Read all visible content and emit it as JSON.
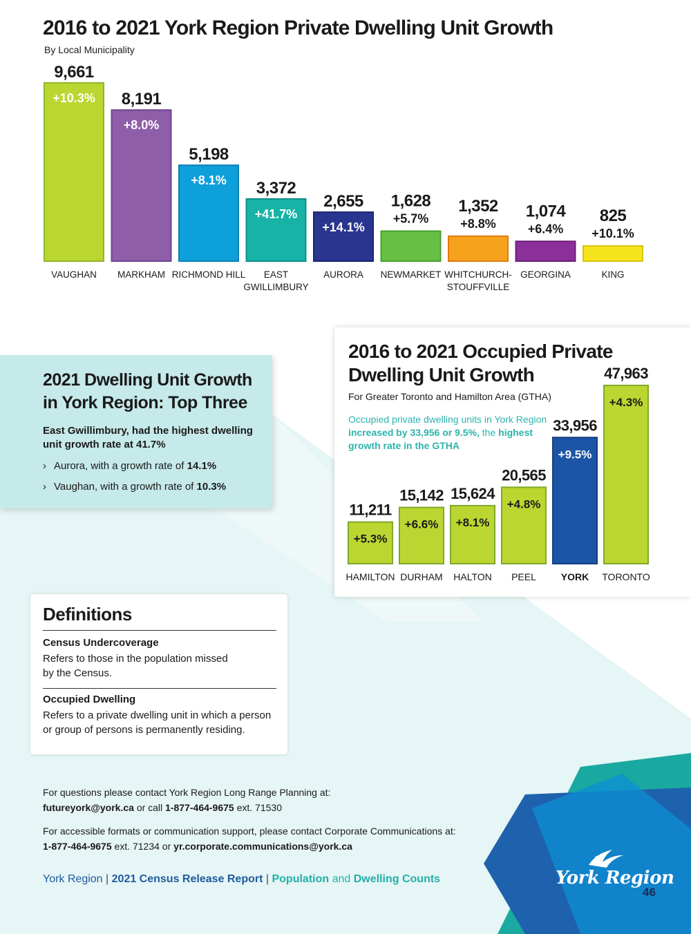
{
  "chart_data": [
    {
      "type": "bar",
      "title": "2016 to 2021 York Region Private Dwelling Unit Growth",
      "subtitle": "By Local Municipality",
      "categories": [
        "VAUGHAN",
        "MARKHAM",
        "RICHMOND HILL",
        "EAST GWILLIMBURY",
        "AURORA",
        "NEWMARKET",
        "WHITCHURCH-STOUFFVILLE",
        "GEORGINA",
        "KING"
      ],
      "category_lines": [
        [
          "VAUGHAN"
        ],
        [
          "MARKHAM"
        ],
        [
          "RICHMOND HILL"
        ],
        [
          "EAST",
          "GWILLIMBURY"
        ],
        [
          "AURORA"
        ],
        [
          "NEWMARKET"
        ],
        [
          "WHITCHURCH-",
          "STOUFFVILLE"
        ],
        [
          "GEORGINA"
        ],
        [
          "KING"
        ]
      ],
      "values": [
        9661,
        8191,
        5198,
        3372,
        2655,
        1628,
        1352,
        1074,
        825
      ],
      "value_labels": [
        "9,661",
        "8,191",
        "5,198",
        "3,372",
        "2,655",
        "1,628",
        "1,352",
        "1,074",
        "825"
      ],
      "growth_labels": [
        "+10.3%",
        "+8.0%",
        "+8.1%",
        "+41.7%",
        "+14.1%",
        "+5.7%",
        "+8.8%",
        "+6.4%",
        "+10.1%"
      ],
      "colors": [
        "#bcd631",
        "#8e5ea8",
        "#0ea0db",
        "#17b3a6",
        "#2a3590",
        "#67bf45",
        "#f7a21c",
        "#8b2f9a",
        "#f6e51d"
      ],
      "borders": [
        "#8fb52c",
        "#6e4590",
        "#0b80b5",
        "#10908a",
        "#1a2470",
        "#44a02e",
        "#e07b10",
        "#6e1f7d",
        "#d7c30c"
      ],
      "ylim": [
        0,
        10000
      ],
      "grid": false
    },
    {
      "type": "bar",
      "title": "2016 to 2021 Occupied Private Dwelling Unit Growth",
      "subtitle": "For Greater Toronto and Hamilton Area (GTHA)",
      "categories": [
        "HAMILTON",
        "DURHAM",
        "HALTON",
        "PEEL",
        "YORK",
        "TORONTO"
      ],
      "values": [
        11211,
        15142,
        15624,
        20565,
        33956,
        47963
      ],
      "value_labels": [
        "11,211",
        "15,142",
        "15,624",
        "20,565",
        "33,956",
        "47,963"
      ],
      "growth_labels": [
        "+5.3%",
        "+6.6%",
        "+8.1%",
        "+4.8%",
        "+9.5%",
        "+4.3%"
      ],
      "colors": [
        "#bcd631",
        "#bcd631",
        "#bcd631",
        "#bcd631",
        "#1c55a6",
        "#bcd631"
      ],
      "borders": [
        "#7fa82a",
        "#7fa82a",
        "#7fa82a",
        "#7fa82a",
        "#143f80",
        "#7fa82a"
      ],
      "highlight": "YORK",
      "ylim": [
        0,
        50000
      ],
      "grid": false
    }
  ],
  "gtha": {
    "title_line1": "2016 to 2021 Occupied Private",
    "title_line2": "Dwelling Unit Growth",
    "subtitle": "For Greater Toronto and Hamilton Area (GTHA)",
    "note_part1": "Occupied private dwelling units in York Region",
    "note_part2": "increased by 33,956 or 9.5%,",
    "note_part3": "the",
    "note_part4": "highest growth rate in the GTHA"
  },
  "top3": {
    "title_line1": "2021 Dwelling Unit Growth",
    "title_line2": "in York Region: Top Three",
    "lead": "East Gwillimbury, had the highest dwelling unit growth rate at 41.7%",
    "bullets": [
      {
        "text": "Aurora, with a growth rate of",
        "value": "14.1%"
      },
      {
        "text": "Vaughan, with a growth rate of",
        "value": "10.3%"
      }
    ],
    "chevron": "›"
  },
  "definitions": {
    "title": "Definitions",
    "items": [
      {
        "term": "Census Undercoverage",
        "text": "Refers to those in the population missed by the Census."
      },
      {
        "term": "Occupied Dwelling",
        "text": "Refers to a private dwelling unit in which a person or group of persons is permanently residing."
      }
    ]
  },
  "contact": {
    "line1": "For questions please contact York Region Long Range Planning at:",
    "email1": "futureyork@york.ca",
    "call": "or call",
    "phone1": "1-877-464-9675",
    "ext1": "ext. 71530",
    "line3": "For accessible formats or communication support, please contact Corporate Communications at:",
    "phone2": "1-877-464-9675",
    "ext2": "ext. 71234 or",
    "email2": "yr.corporate.communications@york.ca"
  },
  "footer": {
    "part1": "York Region",
    "sep": "|",
    "part2": "2021 Census Release Report",
    "part3": "Population",
    "part4": "and",
    "part5": "Dwelling Counts"
  },
  "logo": {
    "text": "York Region",
    "icon": "bird-logo-icon"
  },
  "page_number": "46"
}
